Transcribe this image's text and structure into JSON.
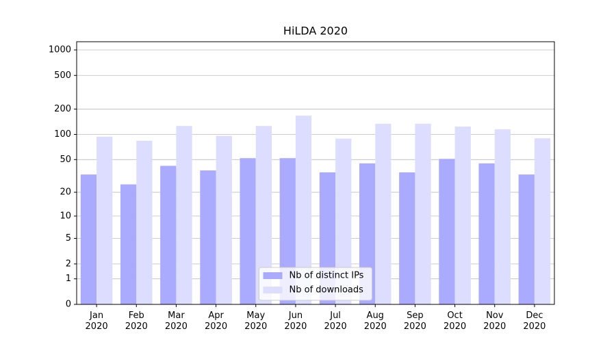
{
  "chart_data": {
    "type": "bar",
    "title": "HiLDA 2020",
    "categories": [
      "Jan 2020",
      "Feb 2020",
      "Mar 2020",
      "Apr 2020",
      "May 2020",
      "Jun 2020",
      "Jul 2020",
      "Aug 2020",
      "Sep 2020",
      "Oct 2020",
      "Nov 2020",
      "Dec 2020"
    ],
    "series": [
      {
        "name": "Nb of distinct IPs",
        "color": "#aaaaff",
        "values": [
          33,
          25,
          42,
          37,
          52,
          52,
          35,
          45,
          35,
          51,
          45,
          33
        ]
      },
      {
        "name": "Nb of downloads",
        "color": "#ddddff",
        "values": [
          94,
          84,
          126,
          96,
          126,
          167,
          89,
          134,
          134,
          124,
          115,
          90
        ]
      }
    ],
    "yscale": "log1p",
    "ylim": [
      0,
      1250
    ],
    "yticks": [
      0,
      1,
      2,
      5,
      10,
      20,
      50,
      100,
      200,
      500,
      1000
    ],
    "grid": true,
    "legend": "lower center"
  }
}
